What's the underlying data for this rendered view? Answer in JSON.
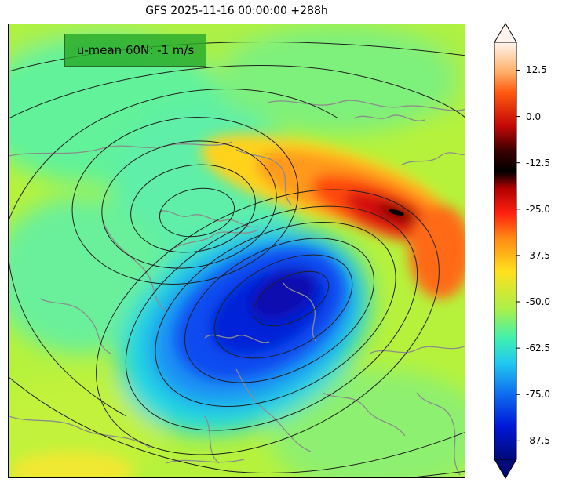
{
  "figure": {
    "title": "GFS 2025-11-16 00:00:00 +288h"
  },
  "annotation": {
    "umean_text": "u-mean 60N: -1 m/s"
  },
  "colorbar": {
    "ticks": [
      "12.5",
      "0.0",
      "-12.5",
      "-25.0",
      "-37.5",
      "-50.0",
      "-62.5",
      "-75.0",
      "-87.5"
    ],
    "tick_values": [
      12.5,
      0.0,
      -12.5,
      -25.0,
      -37.5,
      -50.0,
      -62.5,
      -75.0,
      -87.5
    ],
    "vmin": -92.5,
    "vmax": 20,
    "extend": "both"
  },
  "colors": {
    "annotation_box": "#2aa82a",
    "coastline": "#8c8c8c",
    "contour": "#202020"
  }
}
